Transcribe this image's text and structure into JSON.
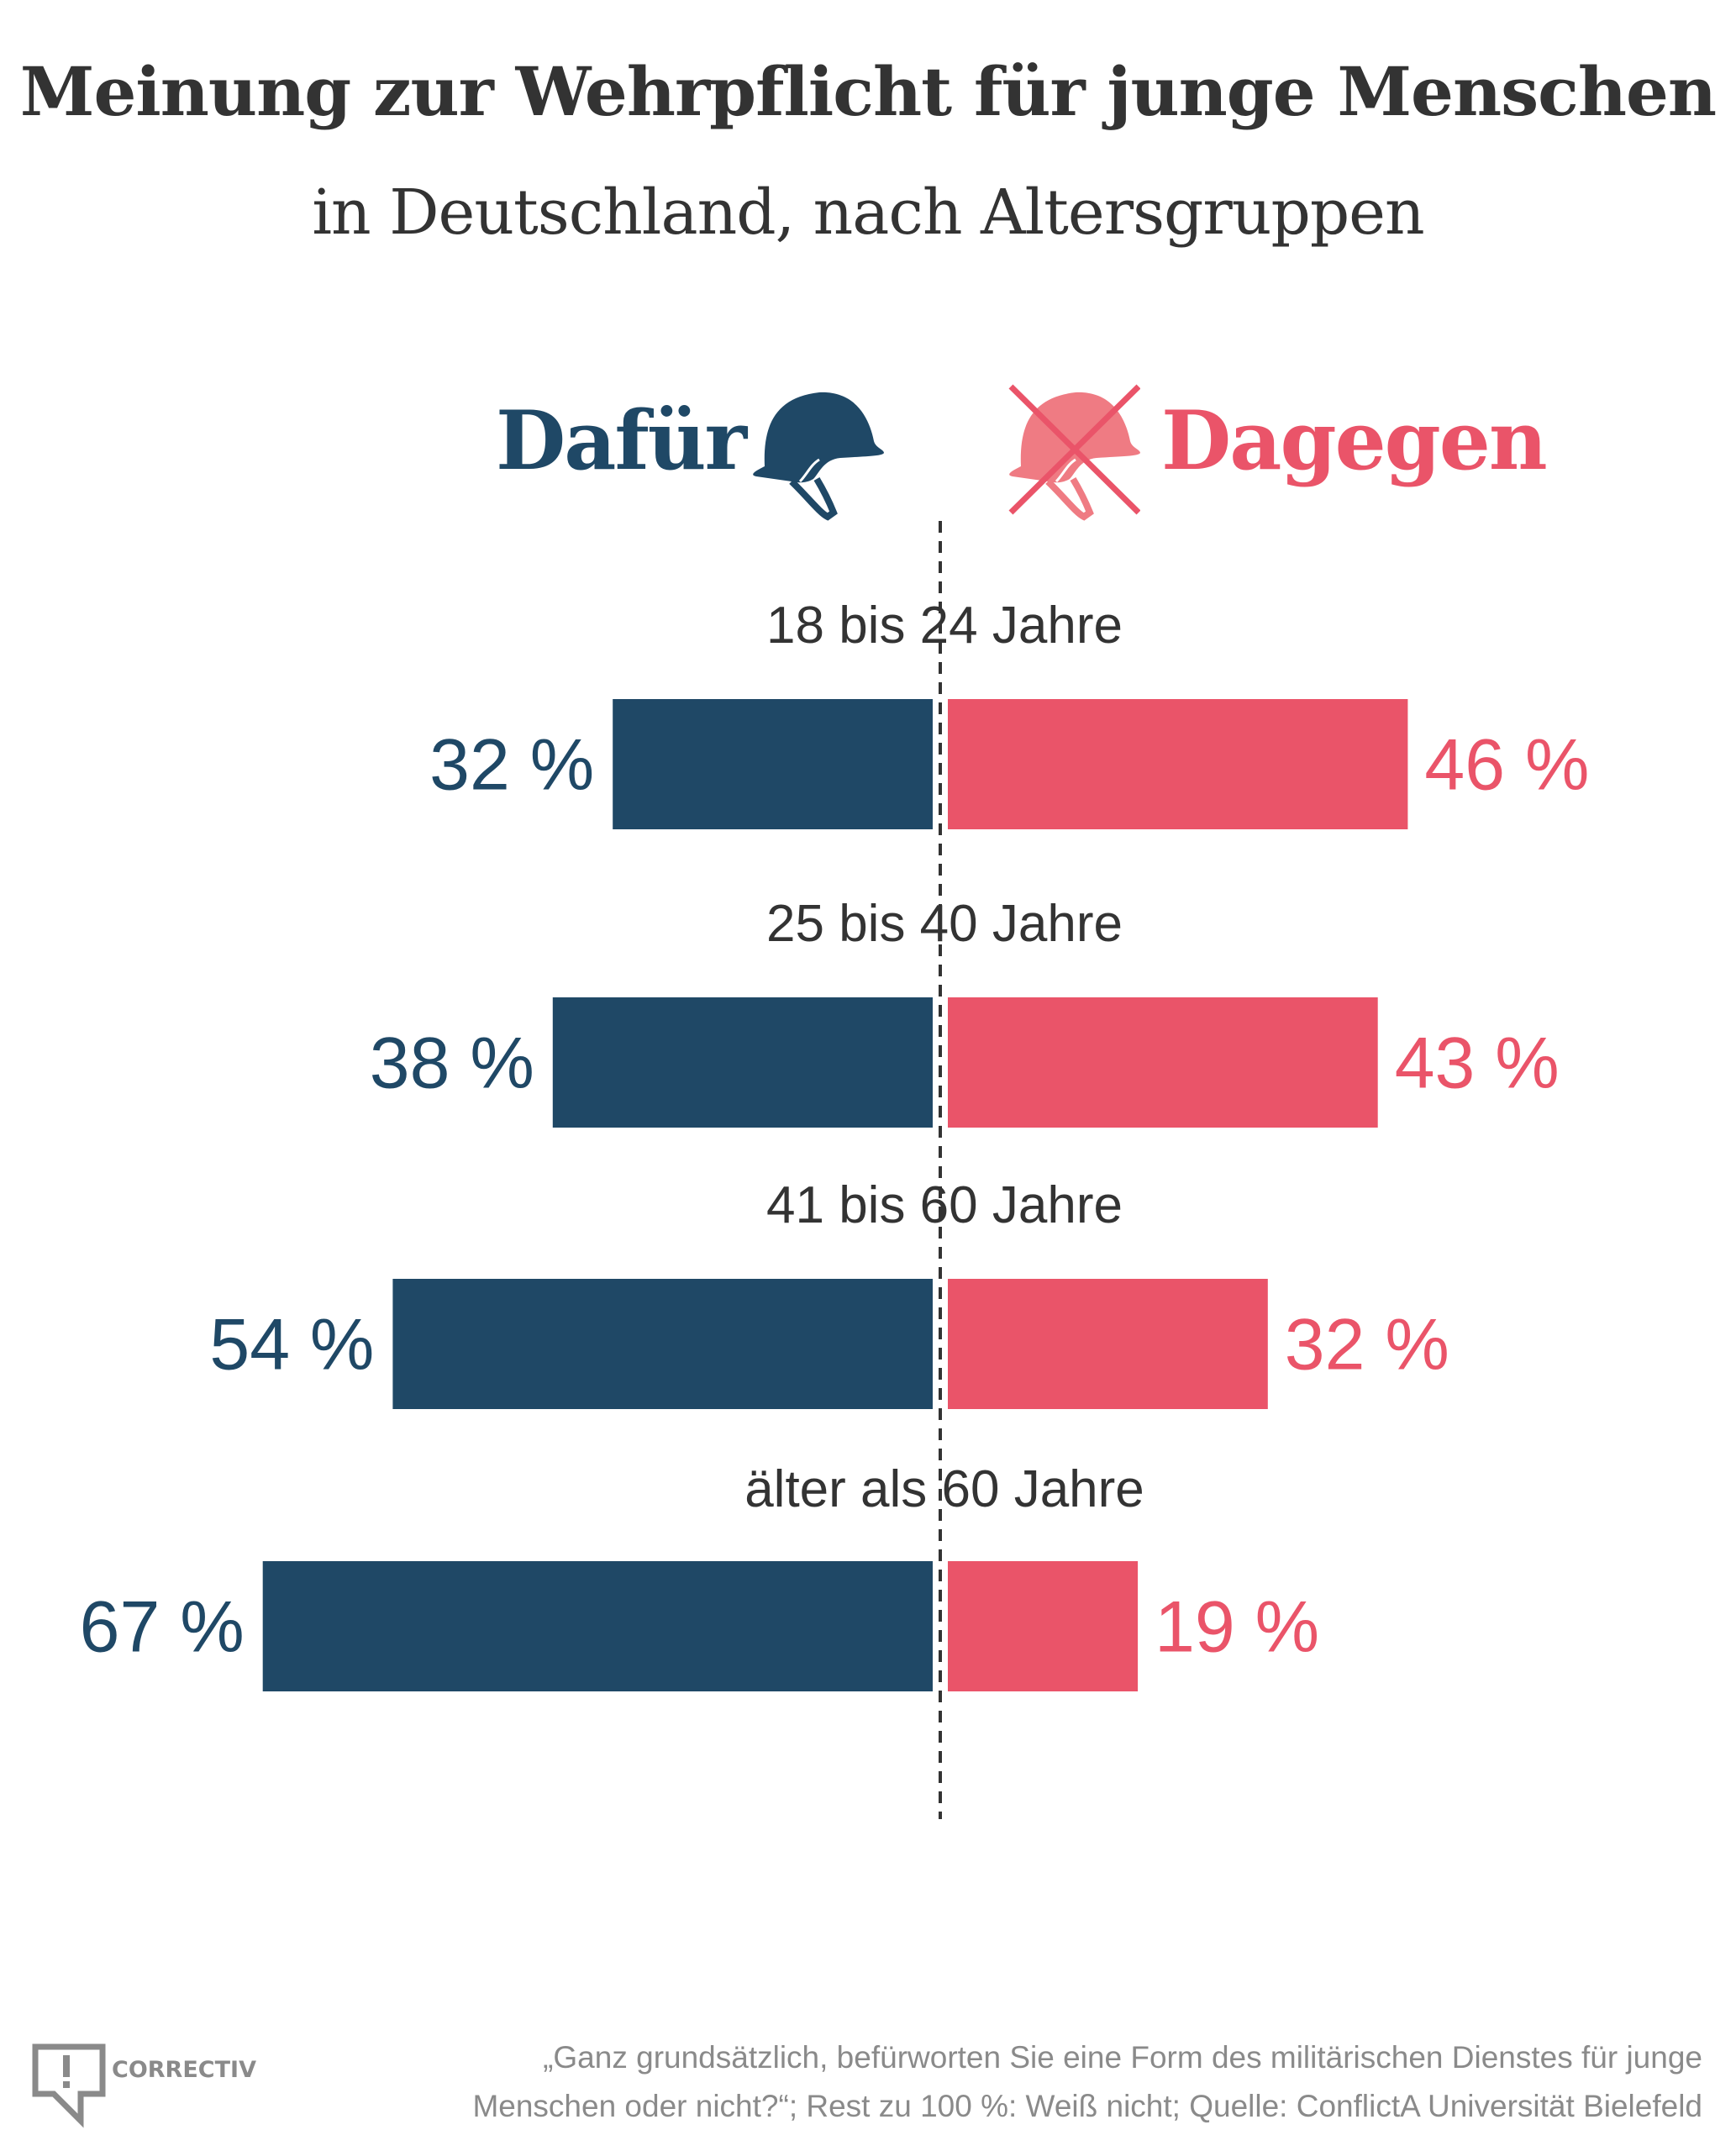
{
  "header": {
    "title": "Meinung zur Wehrpflicht für junge Menschen",
    "subtitle": "in Deutschland, nach Altersgruppen"
  },
  "legend": {
    "for_label": "Dafür",
    "for_icon": "helmet-icon",
    "against_label": "Dagegen",
    "against_icon": "crossed-helmet-icon"
  },
  "colors": {
    "for": "#1f4866",
    "against": "#ea5469",
    "against_icon_fill": "#ef7b83",
    "text": "#333333",
    "footer": "#8a8a8a"
  },
  "chart_data": {
    "type": "bar",
    "orientation": "horizontal-diverging",
    "title": "Meinung zur Wehrpflicht für junge Menschen",
    "subtitle": "in Deutschland, nach Altersgruppen",
    "categories": [
      "18 bis 24 Jahre",
      "25 bis 40 Jahre",
      "41 bis 60 Jahre",
      "älter als 60 Jahre"
    ],
    "series": [
      {
        "name": "Dafür",
        "side": "left",
        "values": [
          32,
          38,
          54,
          67
        ],
        "labels": [
          "32 %",
          "38 %",
          "54 %",
          "67 %"
        ]
      },
      {
        "name": "Dagegen",
        "side": "right",
        "values": [
          46,
          43,
          32,
          19
        ],
        "labels": [
          "46 %",
          "43 %",
          "32 %",
          "19 %"
        ]
      }
    ],
    "unit": "%",
    "xlim": [
      0,
      100
    ],
    "grid": false,
    "center_line": "dashed",
    "legend": "top"
  },
  "footer": {
    "logo_text": "CORRECTIV",
    "note_line1": "„Ganz grundsätzlich, befürworten Sie eine Form des militärischen Dienstes für junge",
    "note_line2": "Menschen oder nicht?“; Rest zu 100 %: Weiß nicht; Quelle: ConflictA Universität Bielefeld"
  }
}
